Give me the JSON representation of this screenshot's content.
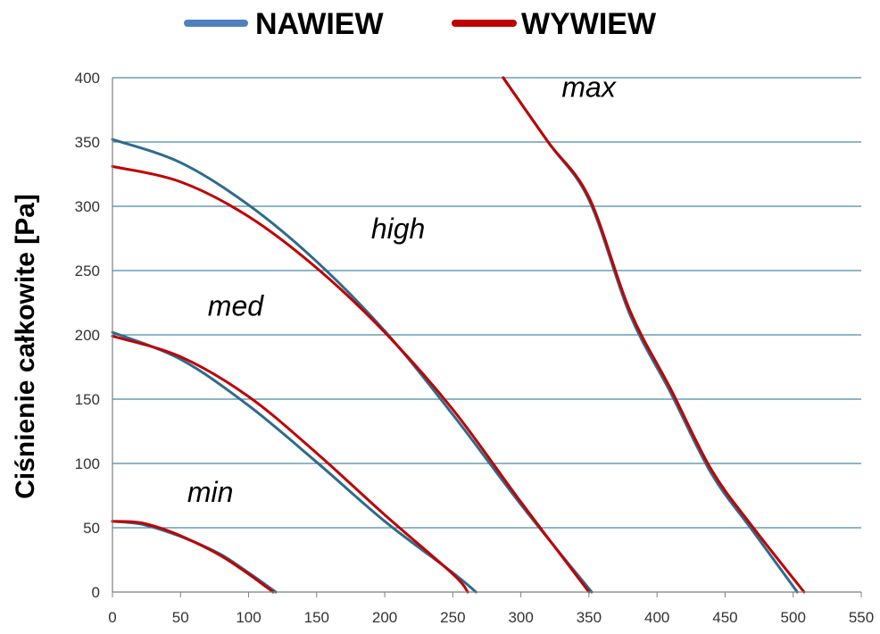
{
  "chart_data": {
    "type": "line",
    "title": "",
    "xlabel": "",
    "ylabel": "Ciśnienie całkowite [Pa]",
    "xlim": [
      0,
      550
    ],
    "ylim": [
      0,
      400
    ],
    "xticks": [
      0,
      50,
      100,
      150,
      200,
      250,
      300,
      350,
      400,
      450,
      500,
      550
    ],
    "yticks": [
      0,
      50,
      100,
      150,
      200,
      250,
      300,
      350,
      400
    ],
    "grid": "horizontal",
    "legend_position": "top",
    "colors": {
      "nawiew": "#4f81bd",
      "nawiew_line": "#2e6b8d",
      "wywiew": "#c00000"
    },
    "series": [
      {
        "name": "NAWIEW",
        "color": "#2e6b8d",
        "legend_color": "#4f81bd",
        "curves": [
          {
            "label": "min",
            "points": [
              [
                0,
                55
              ],
              [
                20,
                53
              ],
              [
                40,
                47
              ],
              [
                60,
                39
              ],
              [
                80,
                29
              ],
              [
                100,
                15
              ],
              [
                120,
                0
              ]
            ]
          },
          {
            "label": "med",
            "points": [
              [
                0,
                202
              ],
              [
                50,
                181
              ],
              [
                100,
                145
              ],
              [
                150,
                101
              ],
              [
                200,
                55
              ],
              [
                250,
                15
              ],
              [
                267,
                0
              ]
            ]
          },
          {
            "label": "high",
            "points": [
              [
                0,
                352
              ],
              [
                50,
                334
              ],
              [
                100,
                301
              ],
              [
                150,
                257
              ],
              [
                200,
                203
              ],
              [
                250,
                138
              ],
              [
                300,
                68
              ],
              [
                352,
                0
              ]
            ]
          },
          {
            "label": "max",
            "points": [
              [
                287,
                400
              ],
              [
                320,
                350
              ],
              [
                350,
                305
              ],
              [
                380,
                216
              ],
              [
                410,
                155
              ],
              [
                440,
                92
              ],
              [
                470,
                48
              ],
              [
                503,
                0
              ]
            ]
          }
        ]
      },
      {
        "name": "WYWIEW",
        "color": "#c00000",
        "legend_color": "#c00000",
        "curves": [
          {
            "label": "min",
            "points": [
              [
                0,
                55
              ],
              [
                20,
                54
              ],
              [
                40,
                48
              ],
              [
                60,
                39
              ],
              [
                80,
                28
              ],
              [
                100,
                14
              ],
              [
                118,
                0
              ]
            ]
          },
          {
            "label": "med",
            "points": [
              [
                0,
                199
              ],
              [
                50,
                183
              ],
              [
                100,
                152
              ],
              [
                150,
                108
              ],
              [
                200,
                60
              ],
              [
                250,
                14
              ],
              [
                261,
                0
              ]
            ]
          },
          {
            "label": "high",
            "points": [
              [
                0,
                331
              ],
              [
                50,
                319
              ],
              [
                100,
                292
              ],
              [
                150,
                252
              ],
              [
                200,
                202
              ],
              [
                250,
                142
              ],
              [
                300,
                70
              ],
              [
                350,
                0
              ]
            ]
          },
          {
            "label": "max",
            "points": [
              [
                287,
                400
              ],
              [
                320,
                350
              ],
              [
                350,
                307
              ],
              [
                380,
                219
              ],
              [
                410,
                158
              ],
              [
                440,
                95
              ],
              [
                470,
                51
              ],
              [
                508,
                0
              ]
            ]
          }
        ]
      }
    ],
    "annotations": [
      {
        "text": "min",
        "x": 55,
        "y": 70
      },
      {
        "text": "med",
        "x": 70,
        "y": 215
      },
      {
        "text": "high",
        "x": 190,
        "y": 275
      },
      {
        "text": "max",
        "x": 330,
        "y": 385
      }
    ]
  }
}
